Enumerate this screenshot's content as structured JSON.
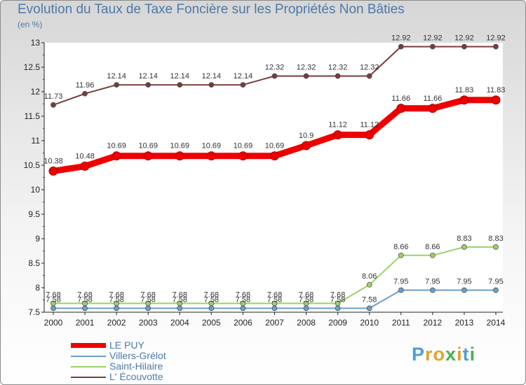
{
  "chart_data": {
    "type": "line",
    "title": "Evolution du Taux de Taxe Foncière sur les Propriétés Non Bâties",
    "ylabel": "(en %)",
    "ylim": [
      7.5,
      13
    ],
    "yticks": [
      "7.5",
      "8",
      "8.5",
      "9",
      "9.5",
      "10",
      "10.5",
      "11",
      "11.5",
      "12",
      "12.5",
      "13"
    ],
    "categories": [
      "2000",
      "2001",
      "2002",
      "2003",
      "2004",
      "2005",
      "2006",
      "2007",
      "2008",
      "2009",
      "2010",
      "2011",
      "2012",
      "2013",
      "2014"
    ],
    "series": [
      {
        "name": "L' Écouvotte",
        "color": "#7a3b3b",
        "values": [
          11.73,
          11.96,
          12.14,
          12.14,
          12.14,
          12.14,
          12.14,
          12.32,
          12.32,
          12.32,
          12.32,
          12.92,
          12.92,
          12.92,
          12.92
        ],
        "labels": [
          "11.73",
          "11.96",
          "12.14",
          "12.14",
          "12.14",
          "12.14",
          "12.14",
          "12.32",
          "12.32",
          "12.32",
          "12.32",
          "12.92",
          "12.92",
          "12.92",
          "12.92"
        ]
      },
      {
        "name": "Saint-Hilaire",
        "color": "#9ad26a",
        "values": [
          7.68,
          7.68,
          7.68,
          7.68,
          7.68,
          7.68,
          7.68,
          7.68,
          7.68,
          7.68,
          8.06,
          8.66,
          8.66,
          8.83,
          8.83
        ],
        "labels": [
          "7.68",
          "7.68",
          "7.68",
          "7.68",
          "7.68",
          "7.68",
          "7.68",
          "7.68",
          "7.68",
          "7.68",
          "8.06",
          "8.66",
          "8.66",
          "8.83",
          "8.83"
        ]
      },
      {
        "name": "Villers-Grélot",
        "color": "#6a9fcb",
        "values": [
          7.58,
          7.58,
          7.58,
          7.58,
          7.58,
          7.58,
          7.58,
          7.58,
          7.58,
          7.58,
          7.58,
          7.95,
          7.95,
          7.95,
          7.95
        ],
        "labels": [
          "7.58",
          "7.58",
          "7.58",
          "7.58",
          "7.58",
          "7.58",
          "7.58",
          "7.58",
          "7.58",
          "7.58",
          "7.58",
          "7.95",
          "7.95",
          "7.95",
          "7.95"
        ]
      },
      {
        "name": "LE PUY",
        "color": "#ee0000",
        "values": [
          10.38,
          10.48,
          10.69,
          10.69,
          10.69,
          10.69,
          10.69,
          10.69,
          10.9,
          11.12,
          11.12,
          11.66,
          11.66,
          11.83,
          11.83
        ],
        "labels": [
          "10.38",
          "10.48",
          "10.69",
          "10.69",
          "10.69",
          "10.69",
          "10.69",
          "10.69",
          "10.9",
          "11.12",
          "11.12",
          "11.66",
          "11.66",
          "11.83",
          "11.83"
        ]
      }
    ],
    "legend": [
      {
        "name": "LE PUY",
        "color": "#ee0000"
      },
      {
        "name": "Villers-Grélot",
        "color": "#6a9fcb"
      },
      {
        "name": "Saint-Hilaire",
        "color": "#9ad26a"
      },
      {
        "name": "L' Écouvotte",
        "color": "#7a3b3b"
      }
    ]
  },
  "brand": {
    "letters": [
      "P",
      "r",
      "o",
      "x",
      "i",
      "t",
      "i"
    ],
    "colors": [
      "#4c9fd6",
      "#e3a32b",
      "#e3a32b",
      "#4caf50",
      "#e3a32b",
      "#4c9fd6",
      "#4caf50"
    ]
  }
}
